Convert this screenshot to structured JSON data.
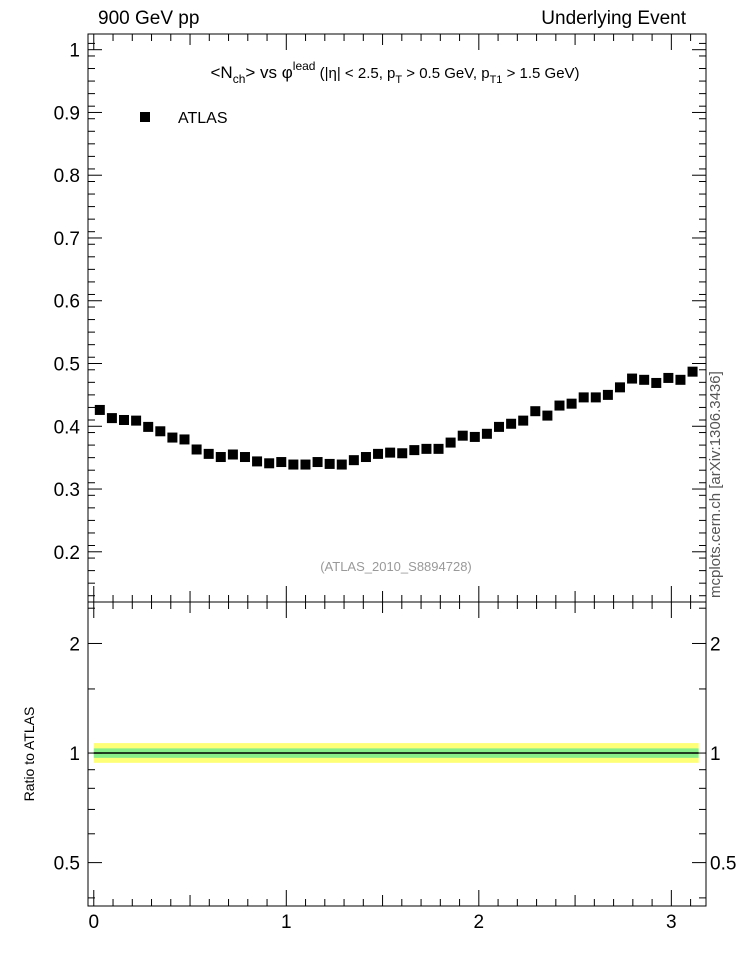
{
  "header": {
    "left": "900 GeV pp",
    "right": "Underlying Event",
    "side_label": "mcplots.cern.ch [arXiv:1306.3436]"
  },
  "chart_data": {
    "type": "scatter",
    "title_parts": {
      "open": "<N",
      "sub_ch": "ch",
      "close_vs": "> vs ",
      "phi": "φ",
      "sup_lead": "lead",
      "cuts_a": " (|η| < 2.5, p",
      "sub_T": "T",
      "cuts_b": " > 0.5 GeV, p",
      "sub_T1": "T1",
      "cuts_c": " > 1.5 GeV)"
    },
    "legend": {
      "label": "ATLAS",
      "position": "top-left"
    },
    "watermark": "(ATLAS_2010_S8894728)",
    "ratio_ylabel": "Ratio to ATLAS",
    "x": [
      0.0314,
      0.0942,
      0.157,
      0.2199,
      0.2827,
      0.3456,
      0.4084,
      0.4712,
      0.5341,
      0.5969,
      0.6597,
      0.7226,
      0.7854,
      0.8482,
      0.9111,
      0.9739,
      1.0367,
      1.0996,
      1.1624,
      1.2252,
      1.2881,
      1.3509,
      1.4137,
      1.4765,
      1.5394,
      1.6022,
      1.665,
      1.7279,
      1.7907,
      1.8535,
      1.9164,
      1.9792,
      2.042,
      2.1049,
      2.1677,
      2.2305,
      2.2934,
      2.3562,
      2.419,
      2.4819,
      2.5447,
      2.6075,
      2.6704,
      2.7332,
      2.796,
      2.8588,
      2.9217,
      2.9845,
      3.0473,
      3.1102
    ],
    "y": [
      0.426,
      0.413,
      0.41,
      0.409,
      0.399,
      0.392,
      0.382,
      0.379,
      0.363,
      0.356,
      0.351,
      0.355,
      0.351,
      0.344,
      0.341,
      0.343,
      0.339,
      0.339,
      0.343,
      0.34,
      0.339,
      0.346,
      0.351,
      0.356,
      0.358,
      0.357,
      0.362,
      0.364,
      0.364,
      0.374,
      0.385,
      0.383,
      0.388,
      0.399,
      0.404,
      0.409,
      0.424,
      0.417,
      0.433,
      0.436,
      0.446,
      0.446,
      0.45,
      0.462,
      0.476,
      0.474,
      0.469,
      0.477,
      0.474,
      0.487
    ],
    "main_axis": {
      "xlim": [
        -0.03,
        3.18
      ],
      "ylim": [
        0.12,
        1.025
      ],
      "yticks": [
        0.2,
        0.3,
        0.4,
        0.5,
        0.6,
        0.7,
        0.8,
        0.9,
        1
      ],
      "ytick_labels": [
        "0.2",
        "0.3",
        "0.4",
        "0.5",
        "0.6",
        "0.7",
        "0.8",
        "0.9",
        "1"
      ]
    },
    "ratio_axis": {
      "ylim": [
        0.38,
        2.6
      ],
      "log_scale": true,
      "yticks": [
        0.5,
        1,
        2
      ],
      "ytick_labels": [
        "0.5",
        "1",
        "2"
      ],
      "band_inner": [
        0.97,
        1.03
      ],
      "band_outer": [
        0.94,
        1.065
      ]
    },
    "xticks": [
      0,
      1,
      2,
      3
    ],
    "xtick_labels": [
      "0",
      "1",
      "2",
      "3"
    ],
    "colors": {
      "marker": "#000000",
      "band_inner": "#88ee88",
      "band_outer": "#ffff77",
      "watermark": "#999999"
    },
    "grid": false
  }
}
